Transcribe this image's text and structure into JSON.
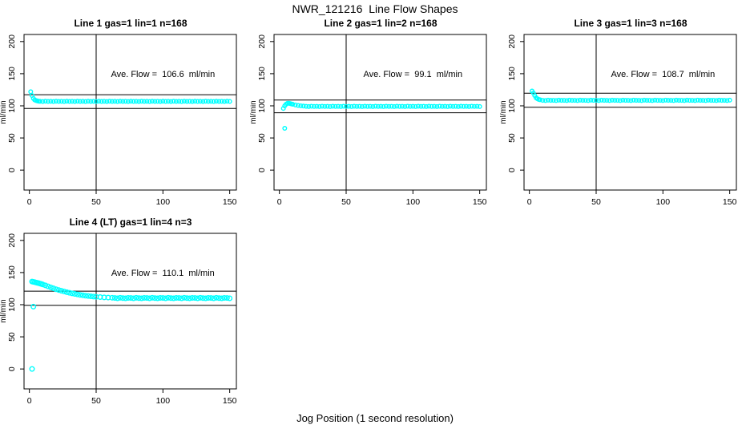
{
  "page": {
    "title": "NWR_121216  Line Flow Shapes",
    "xlabel": "Jog Position (1 second resolution)"
  },
  "colors": {
    "points": "#00ffff",
    "axis": "#000000",
    "background": "#ffffff"
  },
  "chart_data": [
    {
      "type": "scatter",
      "title": "Line 1 gas=1 lin=1 n=168",
      "ylabel": "ml/min",
      "n": 168,
      "ave_flow": 106.6,
      "annotation": {
        "text": "Ave. Flow =  106.6  ml/min",
        "x": 100,
        "y": 150
      },
      "xlim": [
        -4,
        155
      ],
      "ylim": [
        -31,
        211
      ],
      "xticks": [
        0,
        50,
        100,
        150
      ],
      "yticks": [
        0,
        50,
        100,
        150,
        200
      ],
      "vline": 50,
      "hlines": [
        95.9,
        117.3
      ],
      "point_radius": 2.3,
      "outliers": [],
      "points": [
        [
          1,
          122
        ],
        [
          2,
          116
        ],
        [
          3,
          111.5
        ],
        [
          4,
          109.2
        ],
        [
          5,
          108.2
        ],
        [
          6,
          107.6
        ],
        [
          7,
          107.2
        ],
        [
          8,
          107
        ],
        [
          10,
          106.7
        ],
        [
          12,
          107.1
        ],
        [
          14,
          106.8
        ],
        [
          16,
          107
        ],
        [
          18,
          106.7
        ],
        [
          20,
          107.1
        ],
        [
          22,
          106.8
        ],
        [
          24,
          107
        ],
        [
          26,
          106.7
        ],
        [
          28,
          107.1
        ],
        [
          30,
          106.8
        ],
        [
          32,
          107
        ],
        [
          34,
          106.7
        ],
        [
          36,
          107.1
        ],
        [
          38,
          106.8
        ],
        [
          40,
          107
        ],
        [
          42,
          106.7
        ],
        [
          44,
          107.1
        ],
        [
          46,
          106.8
        ],
        [
          48,
          107
        ],
        [
          50,
          106.7
        ],
        [
          52,
          107.1
        ],
        [
          54,
          106.8
        ],
        [
          56,
          107
        ],
        [
          58,
          106.7
        ],
        [
          60,
          107.1
        ],
        [
          62,
          106.8
        ],
        [
          64,
          107
        ],
        [
          66,
          106.7
        ],
        [
          68,
          107.1
        ],
        [
          70,
          106.8
        ],
        [
          72,
          107
        ],
        [
          74,
          106.7
        ],
        [
          76,
          107.1
        ],
        [
          78,
          106.8
        ],
        [
          80,
          107
        ],
        [
          82,
          106.7
        ],
        [
          84,
          107.1
        ],
        [
          86,
          106.8
        ],
        [
          88,
          107
        ],
        [
          90,
          106.7
        ],
        [
          92,
          107.1
        ],
        [
          94,
          106.8
        ],
        [
          96,
          107
        ],
        [
          98,
          106.7
        ],
        [
          100,
          107.1
        ],
        [
          102,
          106.8
        ],
        [
          104,
          107
        ],
        [
          106,
          106.7
        ],
        [
          108,
          107.1
        ],
        [
          110,
          106.8
        ],
        [
          112,
          107
        ],
        [
          114,
          106.7
        ],
        [
          116,
          107.1
        ],
        [
          118,
          106.8
        ],
        [
          120,
          107
        ],
        [
          122,
          106.7
        ],
        [
          124,
          107.1
        ],
        [
          126,
          106.8
        ],
        [
          128,
          107
        ],
        [
          130,
          106.7
        ],
        [
          132,
          107.1
        ],
        [
          134,
          106.8
        ],
        [
          136,
          107
        ],
        [
          138,
          106.7
        ],
        [
          140,
          107.1
        ],
        [
          142,
          106.8
        ],
        [
          144,
          107
        ],
        [
          146,
          106.7
        ],
        [
          148,
          107.1
        ],
        [
          150,
          106.8
        ]
      ]
    },
    {
      "type": "scatter",
      "title": "Line 2 gas=1 lin=2 n=168",
      "ylabel": "ml/min",
      "n": 168,
      "ave_flow": 99.1,
      "annotation": {
        "text": "Ave. Flow =  99.1  ml/min",
        "x": 100,
        "y": 150
      },
      "xlim": [
        -4,
        155
      ],
      "ylim": [
        -31,
        211
      ],
      "xticks": [
        0,
        50,
        100,
        150
      ],
      "yticks": [
        0,
        50,
        100,
        150,
        200
      ],
      "vline": 50,
      "hlines": [
        89.2,
        109.0
      ],
      "point_radius": 2.3,
      "outliers": [
        [
          4,
          65
        ]
      ],
      "points": [
        [
          3,
          96
        ],
        [
          4,
          100
        ],
        [
          5,
          102.5
        ],
        [
          6,
          103.8
        ],
        [
          7,
          104
        ],
        [
          8,
          103.6
        ],
        [
          9,
          103
        ],
        [
          10,
          102.4
        ],
        [
          12,
          101.4
        ],
        [
          14,
          100.6
        ],
        [
          16,
          100
        ],
        [
          18,
          99.6
        ],
        [
          20,
          99.2
        ],
        [
          22,
          98.9
        ],
        [
          24,
          99.4
        ],
        [
          26,
          99.0
        ],
        [
          28,
          99.2
        ],
        [
          30,
          98.9
        ],
        [
          32,
          99.4
        ],
        [
          34,
          99.0
        ],
        [
          36,
          99.2
        ],
        [
          38,
          98.9
        ],
        [
          40,
          99.4
        ],
        [
          42,
          99.0
        ],
        [
          44,
          99.2
        ],
        [
          46,
          98.9
        ],
        [
          48,
          99.4
        ],
        [
          50,
          99.0
        ],
        [
          52,
          99.2
        ],
        [
          54,
          98.9
        ],
        [
          56,
          99.4
        ],
        [
          58,
          99.0
        ],
        [
          60,
          99.2
        ],
        [
          62,
          98.9
        ],
        [
          64,
          99.4
        ],
        [
          66,
          99.0
        ],
        [
          68,
          99.2
        ],
        [
          70,
          98.9
        ],
        [
          72,
          99.4
        ],
        [
          74,
          99.0
        ],
        [
          76,
          99.2
        ],
        [
          78,
          98.9
        ],
        [
          80,
          99.4
        ],
        [
          82,
          99.0
        ],
        [
          84,
          99.2
        ],
        [
          86,
          98.9
        ],
        [
          88,
          99.4
        ],
        [
          90,
          99.0
        ],
        [
          92,
          99.2
        ],
        [
          94,
          98.9
        ],
        [
          96,
          99.4
        ],
        [
          98,
          99.0
        ],
        [
          100,
          99.2
        ],
        [
          102,
          98.9
        ],
        [
          104,
          99.4
        ],
        [
          106,
          99.0
        ],
        [
          108,
          99.2
        ],
        [
          110,
          98.9
        ],
        [
          112,
          99.4
        ],
        [
          114,
          99.0
        ],
        [
          116,
          99.2
        ],
        [
          118,
          98.9
        ],
        [
          120,
          99.4
        ],
        [
          122,
          99.0
        ],
        [
          124,
          99.2
        ],
        [
          126,
          98.9
        ],
        [
          128,
          99.4
        ],
        [
          130,
          99.0
        ],
        [
          132,
          99.2
        ],
        [
          134,
          98.9
        ],
        [
          136,
          99.4
        ],
        [
          138,
          99.0
        ],
        [
          140,
          99.2
        ],
        [
          142,
          98.9
        ],
        [
          144,
          99.4
        ],
        [
          146,
          99.0
        ],
        [
          148,
          99.2
        ],
        [
          150,
          98.9
        ]
      ]
    },
    {
      "type": "scatter",
      "title": "Line 3 gas=1 lin=3 n=168",
      "ylabel": "ml/min",
      "n": 168,
      "ave_flow": 108.7,
      "annotation": {
        "text": "Ave. Flow =  108.7  ml/min",
        "x": 100,
        "y": 150
      },
      "xlim": [
        -4,
        155
      ],
      "ylim": [
        -31,
        211
      ],
      "xticks": [
        0,
        50,
        100,
        150
      ],
      "yticks": [
        0,
        50,
        100,
        150,
        200
      ],
      "vline": 50,
      "hlines": [
        97.8,
        119.6
      ],
      "point_radius": 2.3,
      "outliers": [],
      "points": [
        [
          2,
          123
        ],
        [
          3,
          120
        ],
        [
          4,
          116
        ],
        [
          5,
          112.5
        ],
        [
          6,
          111
        ],
        [
          7,
          110
        ],
        [
          8,
          109.5
        ],
        [
          10,
          108.6
        ],
        [
          12,
          108.3
        ],
        [
          14,
          108.8
        ],
        [
          16,
          108.5
        ],
        [
          18,
          108.6
        ],
        [
          20,
          108.3
        ],
        [
          22,
          108.8
        ],
        [
          24,
          108.5
        ],
        [
          26,
          108.6
        ],
        [
          28,
          108.3
        ],
        [
          30,
          108.8
        ],
        [
          32,
          108.5
        ],
        [
          34,
          108.6
        ],
        [
          36,
          108.3
        ],
        [
          38,
          108.8
        ],
        [
          40,
          108.5
        ],
        [
          42,
          108.6
        ],
        [
          44,
          108.3
        ],
        [
          46,
          108.8
        ],
        [
          48,
          108.5
        ],
        [
          50,
          108.6
        ],
        [
          52,
          108.3
        ],
        [
          54,
          108.8
        ],
        [
          56,
          108.5
        ],
        [
          58,
          108.6
        ],
        [
          60,
          108.3
        ],
        [
          62,
          108.8
        ],
        [
          64,
          108.5
        ],
        [
          66,
          108.6
        ],
        [
          68,
          108.3
        ],
        [
          70,
          108.8
        ],
        [
          72,
          108.5
        ],
        [
          74,
          108.6
        ],
        [
          76,
          108.3
        ],
        [
          78,
          108.8
        ],
        [
          80,
          108.5
        ],
        [
          82,
          108.6
        ],
        [
          84,
          108.3
        ],
        [
          86,
          108.8
        ],
        [
          88,
          108.5
        ],
        [
          90,
          108.6
        ],
        [
          92,
          108.3
        ],
        [
          94,
          108.8
        ],
        [
          96,
          108.5
        ],
        [
          98,
          108.6
        ],
        [
          100,
          108.3
        ],
        [
          102,
          108.8
        ],
        [
          104,
          108.5
        ],
        [
          106,
          108.6
        ],
        [
          108,
          108.3
        ],
        [
          110,
          108.8
        ],
        [
          112,
          108.5
        ],
        [
          114,
          108.6
        ],
        [
          116,
          108.3
        ],
        [
          118,
          108.8
        ],
        [
          120,
          108.5
        ],
        [
          122,
          108.6
        ],
        [
          124,
          108.3
        ],
        [
          126,
          108.8
        ],
        [
          128,
          108.5
        ],
        [
          130,
          108.6
        ],
        [
          132,
          108.3
        ],
        [
          134,
          108.8
        ],
        [
          136,
          108.5
        ],
        [
          138,
          108.6
        ],
        [
          140,
          108.3
        ],
        [
          142,
          108.8
        ],
        [
          144,
          108.5
        ],
        [
          146,
          108.6
        ],
        [
          148,
          108.3
        ],
        [
          150,
          108.8
        ]
      ]
    },
    {
      "type": "scatter",
      "title": "Line 4 (LT) gas=1 lin=4 n=3",
      "ylabel": "ml/min",
      "n": 3,
      "ave_flow": 110.1,
      "annotation": {
        "text": "Ave. Flow =  110.1  ml/min",
        "x": 100,
        "y": 150
      },
      "xlim": [
        -4,
        155
      ],
      "ylim": [
        -31,
        211
      ],
      "xticks": [
        0,
        50,
        100,
        150
      ],
      "yticks": [
        0,
        50,
        100,
        150,
        200
      ],
      "vline": 50,
      "hlines": [
        99.1,
        121.1
      ],
      "point_radius": 2.8,
      "outliers": [
        [
          2,
          0
        ],
        [
          3,
          97
        ]
      ],
      "points": [
        [
          2,
          136
        ],
        [
          3,
          135.5
        ],
        [
          4,
          135
        ],
        [
          5,
          134.5
        ],
        [
          6,
          134
        ],
        [
          7,
          133.5
        ],
        [
          8,
          132.8
        ],
        [
          9,
          132.2
        ],
        [
          10,
          131.5
        ],
        [
          12,
          130
        ],
        [
          14,
          128.5
        ],
        [
          16,
          127
        ],
        [
          18,
          125.5
        ],
        [
          20,
          124
        ],
        [
          22,
          122.8
        ],
        [
          24,
          121.6
        ],
        [
          26,
          120.5
        ],
        [
          28,
          119.5
        ],
        [
          30,
          118.5
        ],
        [
          32,
          117.6
        ],
        [
          34,
          116.8
        ],
        [
          36,
          116
        ],
        [
          38,
          115.3
        ],
        [
          40,
          114.6
        ],
        [
          42,
          114
        ],
        [
          44,
          113.5
        ],
        [
          46,
          113
        ],
        [
          48,
          112.6
        ],
        [
          50,
          112.2
        ],
        [
          53,
          111.8
        ],
        [
          56,
          111.4
        ],
        [
          59,
          111.1
        ],
        [
          62,
          110.8
        ],
        [
          64,
          110.5
        ],
        [
          66,
          110.0
        ],
        [
          68,
          110.8
        ],
        [
          70,
          110.2
        ],
        [
          72,
          109.9
        ],
        [
          74,
          110.6
        ],
        [
          76,
          110.5
        ],
        [
          78,
          110.0
        ],
        [
          80,
          110.8
        ],
        [
          82,
          110.2
        ],
        [
          84,
          109.9
        ],
        [
          86,
          110.6
        ],
        [
          88,
          110.5
        ],
        [
          90,
          110.0
        ],
        [
          92,
          110.8
        ],
        [
          94,
          110.2
        ],
        [
          96,
          109.9
        ],
        [
          98,
          110.6
        ],
        [
          100,
          110.5
        ],
        [
          102,
          110.0
        ],
        [
          104,
          110.8
        ],
        [
          106,
          110.2
        ],
        [
          108,
          109.9
        ],
        [
          110,
          110.6
        ],
        [
          112,
          110.5
        ],
        [
          114,
          110.0
        ],
        [
          116,
          110.8
        ],
        [
          118,
          110.2
        ],
        [
          120,
          109.9
        ],
        [
          122,
          110.6
        ],
        [
          124,
          110.5
        ],
        [
          126,
          110.0
        ],
        [
          128,
          110.8
        ],
        [
          130,
          110.2
        ],
        [
          132,
          109.9
        ],
        [
          134,
          110.6
        ],
        [
          136,
          110.5
        ],
        [
          138,
          110.0
        ],
        [
          140,
          110.8
        ],
        [
          142,
          110.2
        ],
        [
          144,
          109.9
        ],
        [
          146,
          110.6
        ],
        [
          148,
          110.5
        ],
        [
          150,
          110.0
        ]
      ]
    }
  ]
}
